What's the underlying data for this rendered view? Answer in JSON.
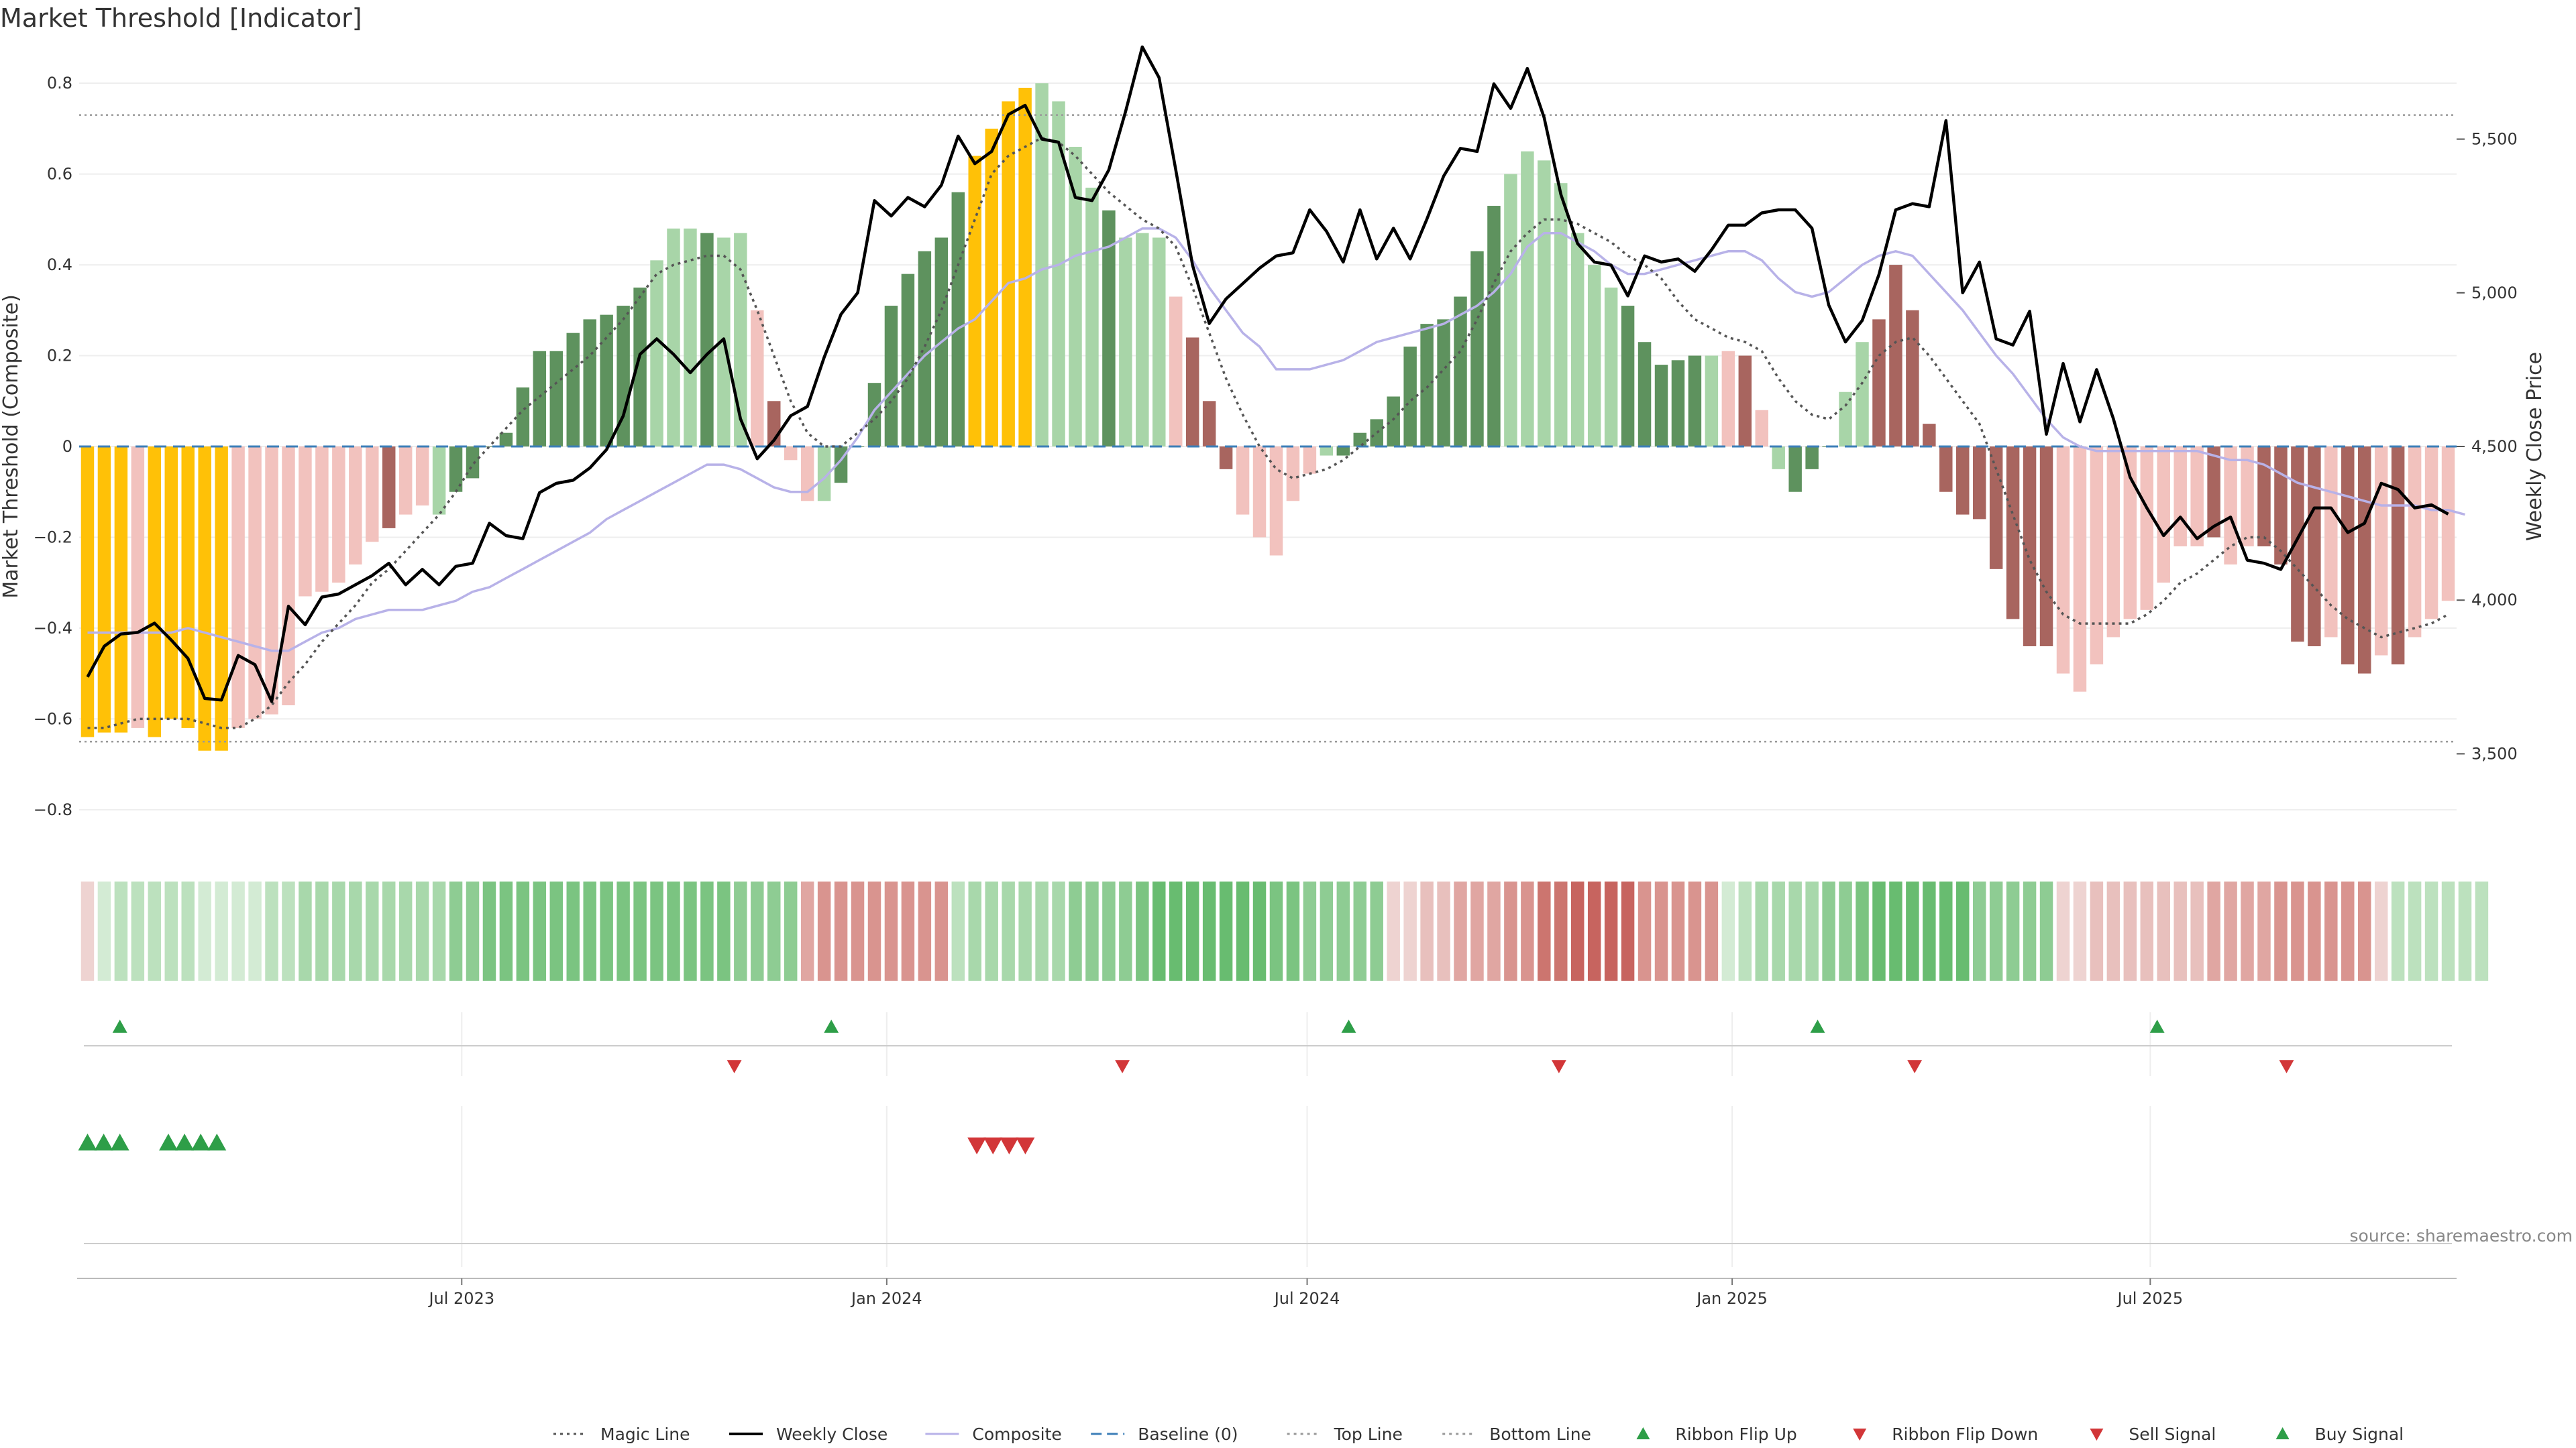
{
  "chart_data": {
    "type": "bar",
    "title": "Market Threshold [Indicator]",
    "ylabel": "Market Threshold (Composite)",
    "y2label": "Weekly Close Price",
    "source": "source: sharemaestro.com",
    "ylim": [
      -0.88,
      0.88
    ],
    "y2lim": [
      3200,
      5800
    ],
    "yticks": [
      0.8,
      0.6,
      0.4,
      0.2,
      0,
      -0.2,
      -0.4,
      -0.6,
      -0.8
    ],
    "ytick_labels": [
      "0.8",
      "0.6",
      "0.4",
      "0.2",
      "0",
      "−0.2",
      "−0.4",
      "−0.6",
      "−0.8"
    ],
    "y2ticks": [
      5500,
      5000,
      4500,
      4000,
      3500
    ],
    "y2tick_labels": [
      "5,500",
      "5,000",
      "4,500",
      "4,000",
      "3,500"
    ],
    "x_start": "2023-01-20",
    "x_end": "2025-11-07",
    "xticks": [
      "2023-07-01",
      "2024-01-01",
      "2024-07-01",
      "2025-01-01",
      "2025-07-01"
    ],
    "xtick_labels": [
      "Jul 2023",
      "Jan 2024",
      "Jul 2024",
      "Jan 2025",
      "Jul 2025"
    ],
    "top_line": 0.73,
    "bottom_line": -0.65,
    "baseline": 0,
    "composite": [
      -0.64,
      -0.63,
      -0.63,
      -0.62,
      -0.64,
      -0.6,
      -0.62,
      -0.67,
      -0.67,
      -0.62,
      -0.6,
      -0.59,
      -0.57,
      -0.33,
      -0.32,
      -0.3,
      -0.26,
      -0.21,
      -0.18,
      -0.15,
      -0.13,
      -0.15,
      -0.1,
      -0.07,
      0.0,
      0.03,
      0.13,
      0.21,
      0.21,
      0.25,
      0.28,
      0.29,
      0.31,
      0.35,
      0.41,
      0.48,
      0.48,
      0.47,
      0.46,
      0.47,
      0.3,
      0.1,
      -0.03,
      -0.12,
      -0.12,
      -0.08,
      0.0,
      0.14,
      0.31,
      0.38,
      0.43,
      0.46,
      0.56,
      0.64,
      0.7,
      0.76,
      0.79,
      0.8,
      0.76,
      0.66,
      0.57,
      0.52,
      0.46,
      0.47,
      0.46,
      0.33,
      0.24,
      0.1,
      -0.05,
      -0.15,
      -0.2,
      -0.24,
      -0.12,
      -0.06,
      -0.02,
      -0.02,
      0.03,
      0.06,
      0.11,
      0.22,
      0.27,
      0.28,
      0.33,
      0.43,
      0.53,
      0.6,
      0.65,
      0.63,
      0.58,
      0.47,
      0.4,
      0.35,
      0.31,
      0.23,
      0.18,
      0.19,
      0.2,
      0.2,
      0.21,
      0.2,
      0.08,
      -0.05,
      -0.1,
      -0.05,
      0.0,
      0.12,
      0.23,
      0.28,
      0.4,
      0.3,
      0.05,
      -0.1,
      -0.15,
      -0.16,
      -0.27,
      -0.38,
      -0.44,
      -0.44,
      -0.5,
      -0.54,
      -0.48,
      -0.42,
      -0.38,
      -0.36,
      -0.3,
      -0.22,
      -0.22,
      -0.2,
      -0.26,
      -0.22,
      -0.22,
      -0.26,
      -0.43,
      -0.44,
      -0.42,
      -0.48,
      -0.5,
      -0.46,
      -0.48,
      -0.42,
      -0.38,
      -0.34
    ],
    "bar_colors": [
      "#FFC107",
      "#FFC107",
      "#FFC107",
      "#F2C2BE",
      "#FFC107",
      "#FFC107",
      "#FFC107",
      "#FFC107",
      "#FFC107",
      "#F2C2BE",
      "#F2C2BE",
      "#F2C2BE",
      "#F2C2BE",
      "#F2C2BE",
      "#F2C2BE",
      "#F2C2BE",
      "#F2C2BE",
      "#F2C2BE",
      "#A8655F",
      "#F2C2BE",
      "#F2C2BE",
      "#A8D5A8",
      "#5E925E",
      "#5E925E",
      "#5E925E",
      "#5E925E",
      "#5E925E",
      "#5E925E",
      "#5E925E",
      "#5E925E",
      "#5E925E",
      "#5E925E",
      "#5E925E",
      "#5E925E",
      "#A8D5A8",
      "#A8D5A8",
      "#A8D5A8",
      "#5E925E",
      "#A8D5A8",
      "#A8D5A8",
      "#F2C2BE",
      "#A8655F",
      "#F2C2BE",
      "#F2C2BE",
      "#A8D5A8",
      "#5E925E",
      "#5E925E",
      "#5E925E",
      "#5E925E",
      "#5E925E",
      "#5E925E",
      "#5E925E",
      "#5E925E",
      "#FFC107",
      "#FFC107",
      "#FFC107",
      "#FFC107",
      "#A8D5A8",
      "#A8D5A8",
      "#A8D5A8",
      "#A8D5A8",
      "#5E925E",
      "#A8D5A8",
      "#A8D5A8",
      "#A8D5A8",
      "#F2C2BE",
      "#A8655F",
      "#A8655F",
      "#A8655F",
      "#F2C2BE",
      "#F2C2BE",
      "#F2C2BE",
      "#F2C2BE",
      "#F2C2BE",
      "#A8D5A8",
      "#5E925E",
      "#5E925E",
      "#5E925E",
      "#5E925E",
      "#5E925E",
      "#5E925E",
      "#5E925E",
      "#5E925E",
      "#5E925E",
      "#5E925E",
      "#A8D5A8",
      "#A8D5A8",
      "#A8D5A8",
      "#A8D5A8",
      "#A8D5A8",
      "#A8D5A8",
      "#A8D5A8",
      "#5E925E",
      "#5E925E",
      "#5E925E",
      "#5E925E",
      "#5E925E",
      "#A8D5A8",
      "#F2C2BE",
      "#A8655F",
      "#F2C2BE",
      "#A8D5A8",
      "#5E925E",
      "#5E925E",
      "#5E925E",
      "#A8D5A8",
      "#A8D5A8",
      "#A8655F",
      "#A8655F",
      "#A8655F",
      "#A8655F",
      "#A8655F",
      "#A8655F",
      "#A8655F",
      "#A8655F",
      "#A8655F",
      "#A8655F",
      "#A8655F",
      "#F2C2BE",
      "#F2C2BE",
      "#F2C2BE",
      "#F2C2BE",
      "#F2C2BE",
      "#F2C2BE",
      "#F2C2BE",
      "#F2C2BE",
      "#F2C2BE",
      "#A8655F",
      "#F2C2BE",
      "#F2C2BE",
      "#A8655F",
      "#A8655F",
      "#A8655F",
      "#A8655F",
      "#F2C2BE",
      "#A8655F",
      "#A8655F",
      "#F2C2BE",
      "#A8655F",
      "#F2C2BE",
      "#F2C2BE",
      "#F2C2BE"
    ],
    "weekly_close": [
      3750,
      3850,
      3890,
      3895,
      3925,
      3870,
      3810,
      3680,
      3675,
      3820,
      3790,
      3670,
      3980,
      3920,
      4010,
      4020,
      4050,
      4080,
      4120,
      4050,
      4100,
      4050,
      4110,
      4120,
      4250,
      4210,
      4200,
      4350,
      4380,
      4390,
      4430,
      4490,
      4600,
      4800,
      4850,
      4800,
      4740,
      4800,
      4850,
      4590,
      4460,
      4520,
      4600,
      4630,
      4790,
      4930,
      5000,
      5300,
      5250,
      5310,
      5280,
      5350,
      5510,
      5420,
      5460,
      5580,
      5610,
      5500,
      5490,
      5310,
      5300,
      5400,
      5590,
      5800,
      5700,
      5400,
      5090,
      4900,
      4980,
      5030,
      5080,
      5120,
      5130,
      5270,
      5200,
      5100,
      5270,
      5110,
      5210,
      5110,
      5240,
      5380,
      5470,
      5460,
      5680,
      5600,
      5730,
      5570,
      5320,
      5160,
      5100,
      5090,
      4990,
      5120,
      5100,
      5110,
      5070,
      5140,
      5220,
      5220,
      5260,
      5270,
      5270,
      5210,
      4960,
      4840,
      4910,
      5060,
      5270,
      5290,
      5280,
      5560,
      5000,
      5100,
      4850,
      4830,
      4940,
      4540,
      4770,
      4580,
      4750,
      4590,
      4400,
      4300,
      4210,
      4270,
      4200,
      4240,
      4270,
      4130,
      4120,
      4100,
      4200,
      4300,
      4300,
      4220,
      4250,
      4380,
      4360,
      4300,
      4310,
      4280
    ],
    "composite_line": [
      -0.41,
      -0.41,
      -0.41,
      -0.41,
      -0.41,
      -0.41,
      -0.4,
      -0.41,
      -0.42,
      -0.43,
      -0.44,
      -0.45,
      -0.45,
      -0.43,
      -0.41,
      -0.4,
      -0.38,
      -0.37,
      -0.36,
      -0.36,
      -0.36,
      -0.35,
      -0.34,
      -0.32,
      -0.31,
      -0.29,
      -0.27,
      -0.25,
      -0.23,
      -0.21,
      -0.19,
      -0.16,
      -0.14,
      -0.12,
      -0.1,
      -0.08,
      -0.06,
      -0.04,
      -0.04,
      -0.05,
      -0.07,
      -0.09,
      -0.1,
      -0.1,
      -0.07,
      -0.03,
      0.02,
      0.08,
      0.12,
      0.16,
      0.2,
      0.23,
      0.26,
      0.28,
      0.32,
      0.36,
      0.37,
      0.39,
      0.4,
      0.42,
      0.43,
      0.44,
      0.46,
      0.48,
      0.48,
      0.46,
      0.41,
      0.35,
      0.3,
      0.25,
      0.22,
      0.17,
      0.17,
      0.17,
      0.18,
      0.19,
      0.21,
      0.23,
      0.24,
      0.25,
      0.26,
      0.27,
      0.29,
      0.31,
      0.34,
      0.38,
      0.44,
      0.47,
      0.47,
      0.45,
      0.43,
      0.4,
      0.38,
      0.38,
      0.39,
      0.4,
      0.41,
      0.42,
      0.43,
      0.43,
      0.41,
      0.37,
      0.34,
      0.33,
      0.34,
      0.37,
      0.4,
      0.42,
      0.43,
      0.42,
      0.38,
      0.34,
      0.3,
      0.25,
      0.2,
      0.16,
      0.11,
      0.06,
      0.02,
      0.0,
      -0.01,
      -0.01,
      -0.01,
      -0.01,
      -0.01,
      -0.01,
      -0.01,
      -0.02,
      -0.03,
      -0.03,
      -0.04,
      -0.06,
      -0.08,
      -0.09,
      -0.1,
      -0.11,
      -0.12,
      -0.13,
      -0.13,
      -0.13,
      -0.14,
      -0.14,
      -0.15
    ],
    "magic_line": [
      -0.62,
      -0.62,
      -0.61,
      -0.6,
      -0.6,
      -0.6,
      -0.6,
      -0.61,
      -0.62,
      -0.62,
      -0.6,
      -0.57,
      -0.52,
      -0.48,
      -0.43,
      -0.39,
      -0.35,
      -0.3,
      -0.27,
      -0.23,
      -0.19,
      -0.15,
      -0.1,
      -0.04,
      0.0,
      0.04,
      0.08,
      0.11,
      0.14,
      0.17,
      0.2,
      0.24,
      0.28,
      0.33,
      0.38,
      0.4,
      0.41,
      0.42,
      0.42,
      0.39,
      0.3,
      0.2,
      0.1,
      0.03,
      0.0,
      0.0,
      0.03,
      0.06,
      0.1,
      0.15,
      0.22,
      0.3,
      0.4,
      0.5,
      0.6,
      0.64,
      0.66,
      0.68,
      0.67,
      0.64,
      0.6,
      0.56,
      0.53,
      0.5,
      0.48,
      0.44,
      0.35,
      0.25,
      0.15,
      0.07,
      0.0,
      -0.05,
      -0.07,
      -0.06,
      -0.05,
      -0.03,
      0.0,
      0.03,
      0.06,
      0.1,
      0.13,
      0.17,
      0.21,
      0.28,
      0.36,
      0.43,
      0.47,
      0.5,
      0.5,
      0.49,
      0.47,
      0.45,
      0.42,
      0.4,
      0.37,
      0.32,
      0.28,
      0.26,
      0.24,
      0.23,
      0.21,
      0.15,
      0.1,
      0.07,
      0.06,
      0.09,
      0.14,
      0.2,
      0.23,
      0.24,
      0.2,
      0.15,
      0.1,
      0.05,
      -0.05,
      -0.15,
      -0.25,
      -0.32,
      -0.37,
      -0.39,
      -0.39,
      -0.39,
      -0.39,
      -0.37,
      -0.34,
      -0.3,
      -0.28,
      -0.25,
      -0.22,
      -0.2,
      -0.2,
      -0.23,
      -0.27,
      -0.31,
      -0.35,
      -0.38,
      -0.4,
      -0.42,
      -0.41,
      -0.4,
      -0.39,
      -0.37
    ],
    "ribbon_colors": [
      "#EED3D1",
      "#D3EBD4",
      "#BCE1BE",
      "#BCE1BE",
      "#BCE1BE",
      "#BCE1BE",
      "#BCE1BE",
      "#D3EBD4",
      "#D3EBD4",
      "#D3EBD4",
      "#D3EBD4",
      "#BCE1BE",
      "#BCE1BE",
      "#A8D8AB",
      "#A8D8AB",
      "#A8D8AB",
      "#A8D8AB",
      "#A8D8AB",
      "#A8D8AB",
      "#A8D8AB",
      "#A8D8AB",
      "#A8D8AB",
      "#8ECC93",
      "#8ECC93",
      "#7BC481",
      "#7BC481",
      "#7BC481",
      "#7BC481",
      "#7BC481",
      "#7BC481",
      "#7BC481",
      "#7BC481",
      "#7BC481",
      "#7BC481",
      "#7BC481",
      "#7BC481",
      "#7BC481",
      "#7BC481",
      "#7BC481",
      "#8ECC93",
      "#8ECC93",
      "#8ECC93",
      "#8ECC93",
      "#E0A6A2",
      "#D9948F",
      "#D9948F",
      "#D9948F",
      "#D9948F",
      "#D9948F",
      "#D9948F",
      "#D9948F",
      "#D9948F",
      "#BCE1BE",
      "#A8D8AB",
      "#A8D8AB",
      "#A8D8AB",
      "#A8D8AB",
      "#A8D8AB",
      "#A8D8AB",
      "#8ECC93",
      "#8ECC93",
      "#8ECC93",
      "#8ECC93",
      "#7BC481",
      "#68BC70",
      "#68BC70",
      "#68BC70",
      "#68BC70",
      "#68BC70",
      "#68BC70",
      "#68BC70",
      "#7BC481",
      "#7BC481",
      "#8ECC93",
      "#8ECC93",
      "#8ECC93",
      "#8ECC93",
      "#8ECC93",
      "#EED3D1",
      "#EED3D1",
      "#E8C0BD",
      "#E8C0BD",
      "#E0A6A2",
      "#E0A6A2",
      "#E0A6A2",
      "#D9948F",
      "#D9948F",
      "#CC756F",
      "#CC756F",
      "#C7645F",
      "#C7645F",
      "#C7645F",
      "#C7645F",
      "#D9948F",
      "#D9948F",
      "#D9948F",
      "#D9948F",
      "#D9948F",
      "#D3EBD4",
      "#BCE1BE",
      "#A8D8AB",
      "#A8D8AB",
      "#A8D8AB",
      "#A8D8AB",
      "#8ECC93",
      "#8ECC93",
      "#7BC481",
      "#68BC70",
      "#68BC70",
      "#68BC70",
      "#68BC70",
      "#68BC70",
      "#68BC70",
      "#8ECC93",
      "#8ECC93",
      "#8ECC93",
      "#8ECC93",
      "#8ECC93",
      "#EED3D1",
      "#EED3D1",
      "#E8C0BD",
      "#E8C0BD",
      "#E8C0BD",
      "#E8C0BD",
      "#E8C0BD",
      "#E8C0BD",
      "#E8C0BD",
      "#E0A6A2",
      "#E0A6A2",
      "#E0A6A2",
      "#E0A6A2",
      "#D9948F",
      "#D9948F",
      "#D9948F",
      "#D9948F",
      "#D9948F",
      "#D9948F",
      "#EED3D1",
      "#BCE1BE",
      "#BCE1BE",
      "#BCE1BE",
      "#BCE1BE",
      "#BCE1BE",
      "#BCE1BE"
    ],
    "ribbon_flip_up": [
      "2023-02-03",
      "2023-12-08",
      "2024-07-19",
      "2025-02-07",
      "2025-07-04"
    ],
    "ribbon_flip_down": [
      "2023-10-27",
      "2024-04-12",
      "2024-10-18",
      "2025-03-21",
      "2025-08-29"
    ],
    "buy_signals": [
      "2023-01-20",
      "2023-01-27",
      "2023-02-03",
      "2023-02-24",
      "2023-03-03",
      "2023-03-10",
      "2023-03-17"
    ],
    "sell_signals": [
      "2024-02-09",
      "2024-02-16",
      "2024-02-23",
      "2024-03-01"
    ],
    "legend": [
      {
        "label": "Magic Line",
        "kind": "dotted",
        "color": "#555555"
      },
      {
        "label": "Weekly Close",
        "kind": "solid",
        "color": "#000000"
      },
      {
        "label": "Composite",
        "kind": "solid-light",
        "color": "#B8B2E8"
      },
      {
        "label": "Baseline (0)",
        "kind": "dashed",
        "color": "#3D7FB8"
      },
      {
        "label": "Top Line",
        "kind": "dotted-light",
        "color": "#999999"
      },
      {
        "label": "Bottom Line",
        "kind": "dotted-light",
        "color": "#999999"
      },
      {
        "label": "Ribbon Flip Up",
        "kind": "tri-up",
        "color": "#2E9E48"
      },
      {
        "label": "Ribbon Flip Down",
        "kind": "tri-down",
        "color": "#D23638"
      },
      {
        "label": "Sell Signal",
        "kind": "tri-down",
        "color": "#D23638"
      },
      {
        "label": "Buy Signal",
        "kind": "tri-up",
        "color": "#2E9E48"
      }
    ]
  }
}
